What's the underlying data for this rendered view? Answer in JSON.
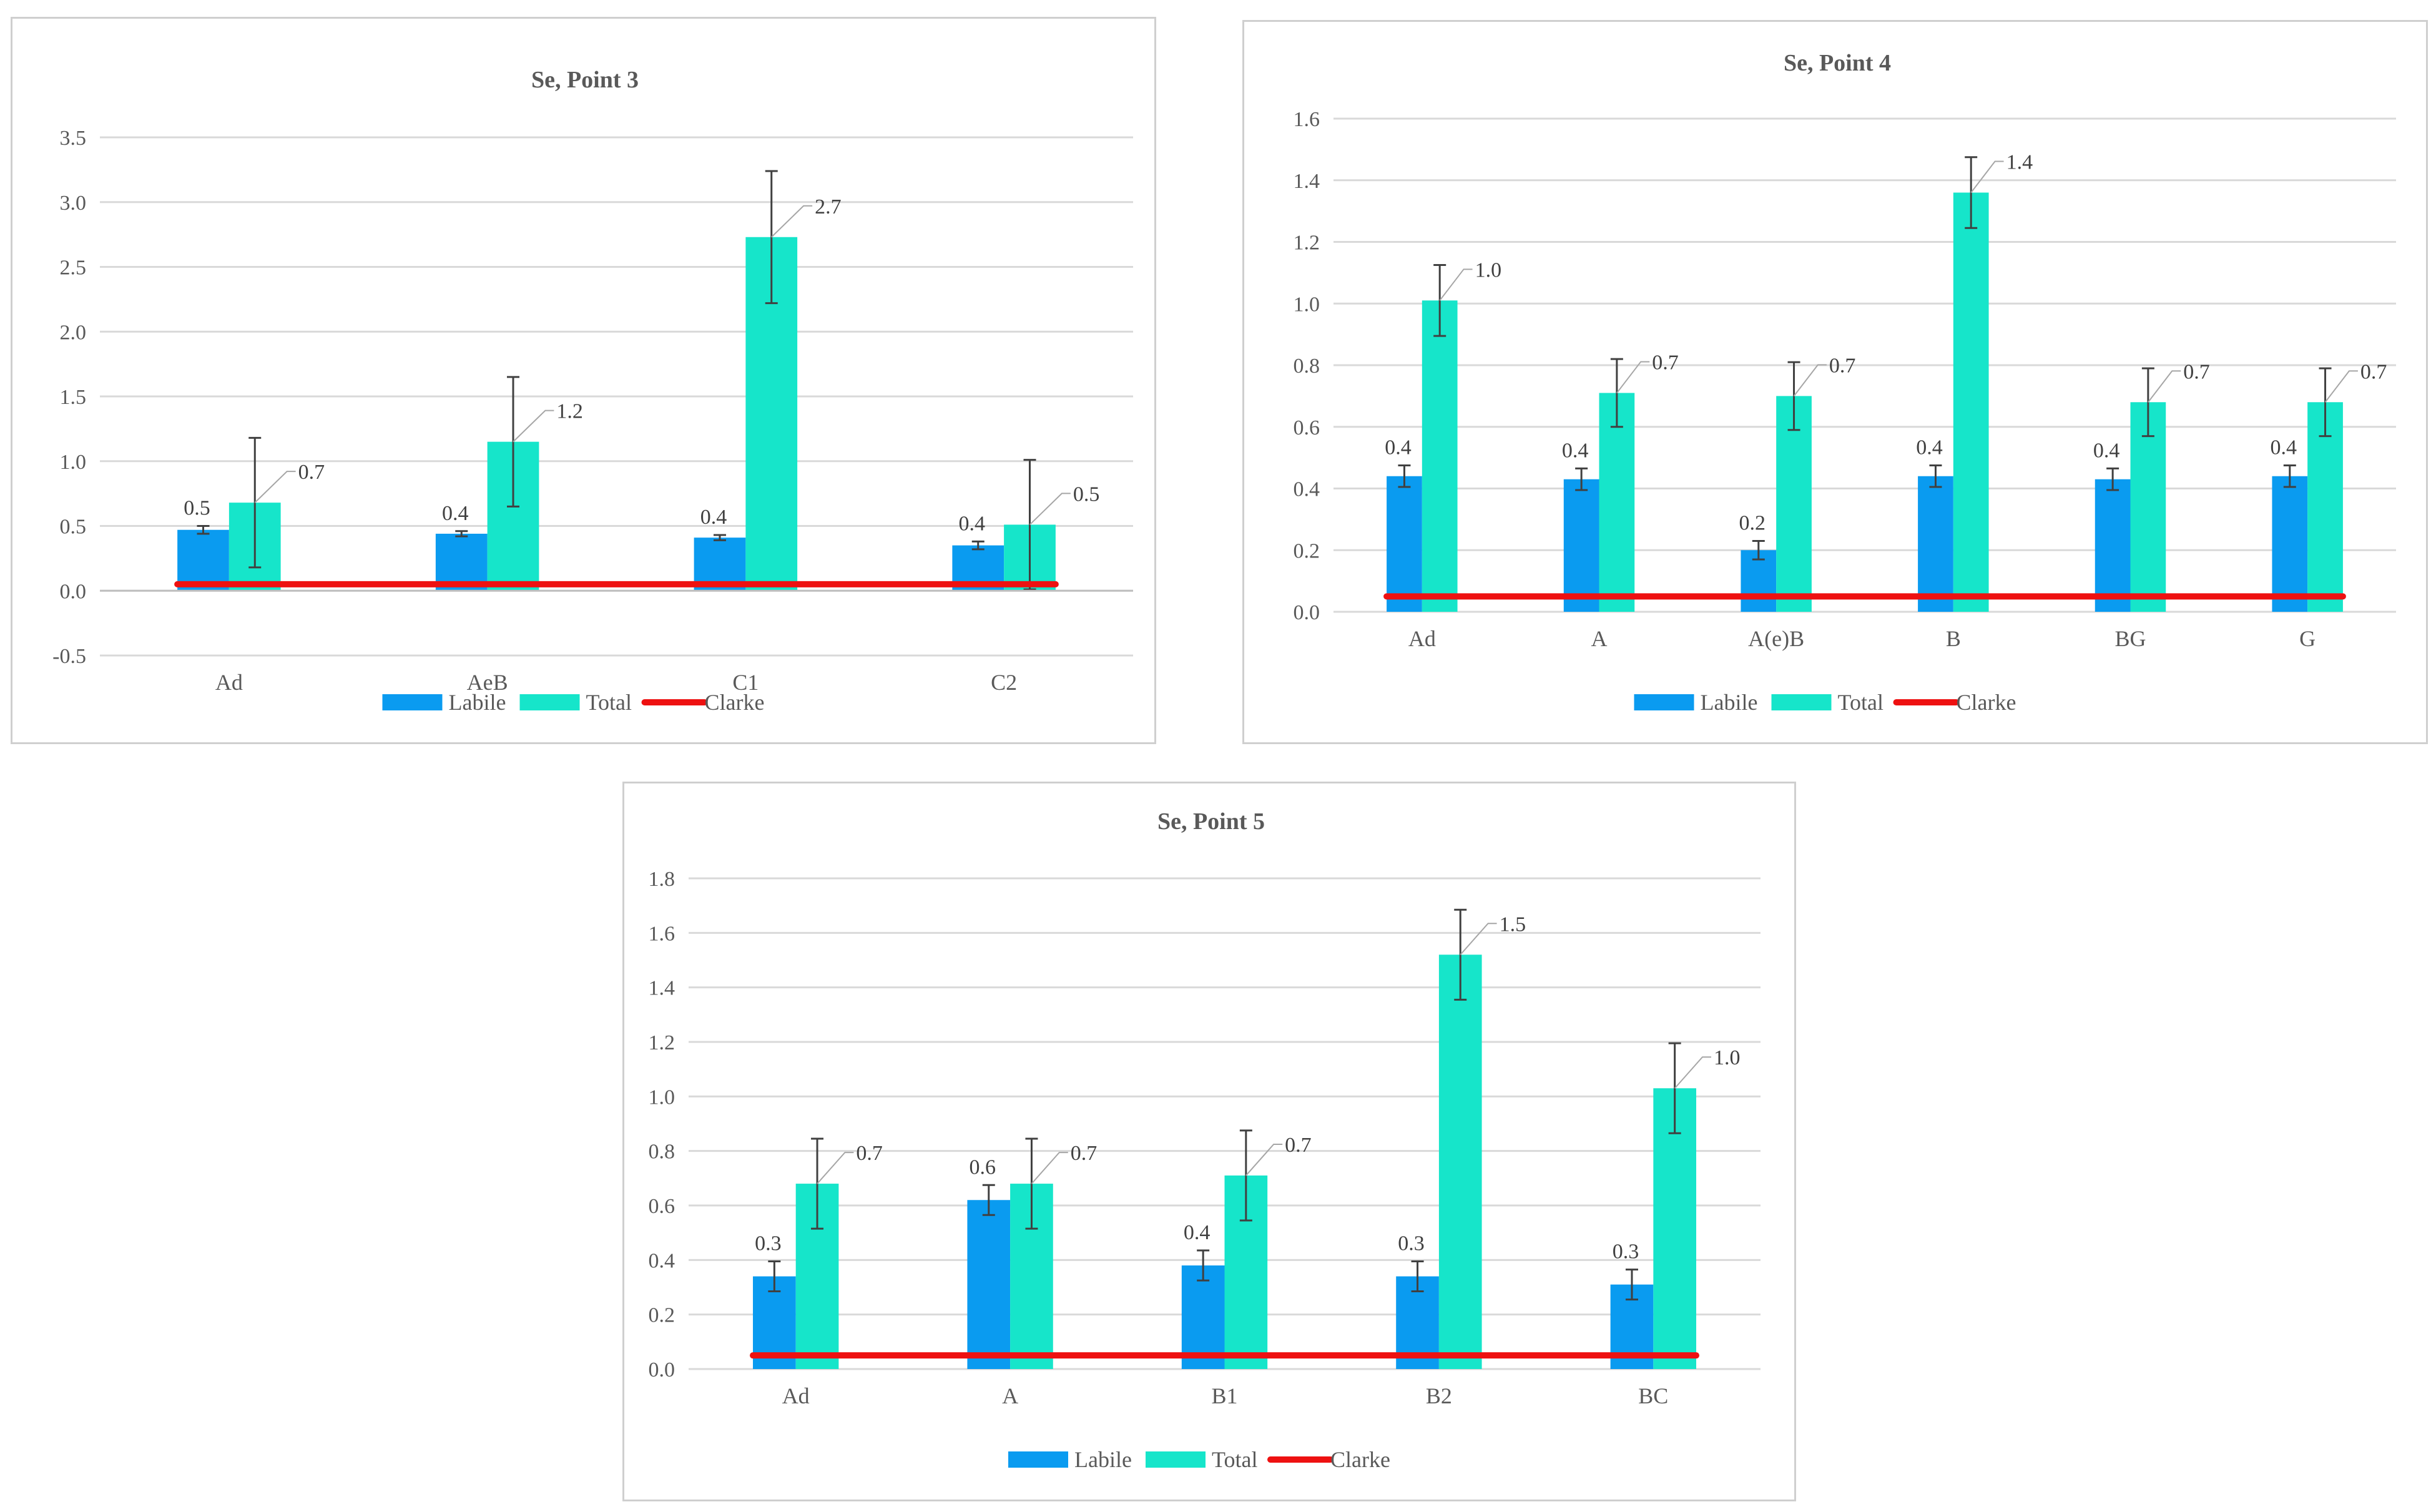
{
  "colors": {
    "labile": "#0a9bf0",
    "total": "#16e5ca",
    "clarke": "#ee1111",
    "grid": "#d9d9d9",
    "error": "#404040"
  },
  "chart_data": [
    {
      "id": "point3",
      "type": "bar",
      "title": "Se, Point  3",
      "categories": [
        "Ad",
        "AeB",
        "C1",
        "C2"
      ],
      "yticks": [
        "3.5",
        "3.0",
        "2.5",
        "2.0",
        "1.5",
        "1.0",
        "0.5",
        "0.0",
        "-0.5"
      ],
      "ylim": [
        -0.5,
        3.5
      ],
      "series": [
        {
          "name": "Labile",
          "values": [
            0.47,
            0.44,
            0.41,
            0.35
          ],
          "errors": [
            0.03,
            0.02,
            0.02,
            0.03
          ],
          "labels": [
            "0.5",
            "0.4",
            "0.4",
            "0.4"
          ]
        },
        {
          "name": "Total",
          "values": [
            0.68,
            1.15,
            2.73,
            0.51
          ],
          "errors": [
            0.5,
            0.5,
            0.51,
            0.5
          ],
          "labels": [
            "0.7",
            "1.2",
            "2.7",
            "0.5"
          ]
        }
      ],
      "clarke": {
        "name": "Clarke",
        "value": 0.05
      },
      "legend": [
        "Labile",
        "Total",
        "Clarke"
      ]
    },
    {
      "id": "point4",
      "type": "bar",
      "title": "Se, Point 4",
      "categories": [
        "Ad",
        "A",
        "A(e)B",
        "B",
        "BG",
        "G"
      ],
      "yticks": [
        "1.6",
        "1.4",
        "1.2",
        "1.0",
        "0.8",
        "0.6",
        "0.4",
        "0.2",
        "0.0"
      ],
      "ylim": [
        0,
        1.6
      ],
      "series": [
        {
          "name": "Labile",
          "values": [
            0.44,
            0.43,
            0.2,
            0.44,
            0.43,
            0.44
          ],
          "errors": [
            0.035,
            0.035,
            0.03,
            0.035,
            0.035,
            0.035
          ],
          "labels": [
            "0.4",
            "0.4",
            "0.2",
            "0.4",
            "0.4",
            "0.4"
          ]
        },
        {
          "name": "Total",
          "values": [
            1.01,
            0.71,
            0.7,
            1.36,
            0.68,
            0.68
          ],
          "errors": [
            0.115,
            0.11,
            0.11,
            0.115,
            0.11,
            0.11
          ],
          "labels": [
            "1.0",
            "0.7",
            "0.7",
            "1.4",
            "0.7",
            "0.7"
          ]
        }
      ],
      "clarke": {
        "name": "Clarke",
        "value": 0.05
      },
      "legend": [
        "Labile",
        "Total",
        "Clarke"
      ]
    },
    {
      "id": "point5",
      "type": "bar",
      "title": "Se, Point 5",
      "categories": [
        "Ad",
        "A",
        "B1",
        "B2",
        "BC"
      ],
      "yticks": [
        "1.8",
        "1.6",
        "1.4",
        "1.2",
        "1.0",
        "0.8",
        "0.6",
        "0.4",
        "0.2",
        "0.0"
      ],
      "ylim": [
        0,
        1.8
      ],
      "series": [
        {
          "name": "Labile",
          "values": [
            0.34,
            0.62,
            0.38,
            0.34,
            0.31
          ],
          "errors": [
            0.055,
            0.055,
            0.055,
            0.055,
            0.055
          ],
          "labels": [
            "0.3",
            "0.6",
            "0.4",
            "0.3",
            "0.3"
          ]
        },
        {
          "name": "Total",
          "values": [
            0.68,
            0.68,
            0.71,
            1.52,
            1.03
          ],
          "errors": [
            0.165,
            0.165,
            0.165,
            0.165,
            0.165
          ],
          "labels": [
            "0.7",
            "0.7",
            "0.7",
            "1.5",
            "1.0"
          ]
        }
      ],
      "clarke": {
        "name": "Clarke",
        "value": 0.05
      },
      "legend": [
        "Labile",
        "Total",
        "Clarke"
      ]
    }
  ]
}
